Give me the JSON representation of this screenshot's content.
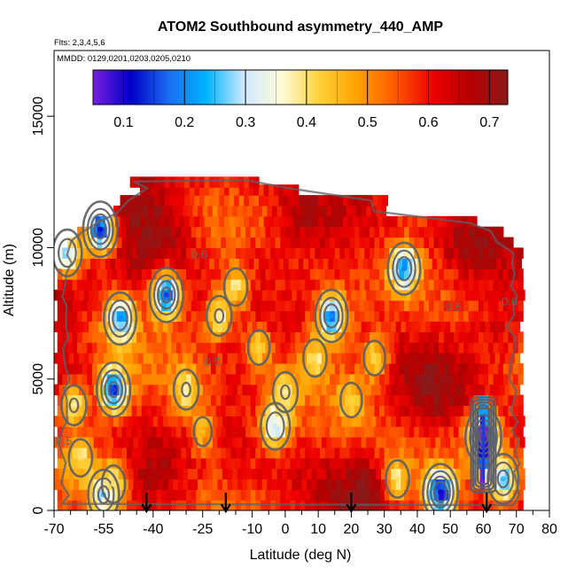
{
  "chart_data": {
    "type": "heatmap",
    "title": "ATOM2 Southbound asymmetry_440_AMP",
    "flights_note": "Flts: 2,3,4,5,6",
    "dates_note": "MMDD: 0129,0201,0203,0205,0210",
    "xlabel": "Latitude (deg N)",
    "ylabel": "Altitude (m)",
    "xlim": [
      -70,
      80
    ],
    "ylim": [
      0,
      17500
    ],
    "xticks": [
      -70,
      -55,
      -40,
      -25,
      -10,
      0,
      10,
      20,
      30,
      40,
      50,
      60,
      70,
      80
    ],
    "xtick_labels": [
      "-70",
      "-55",
      "-40",
      "-25",
      "-10",
      "0",
      "10",
      "20",
      "30",
      "40",
      "50",
      "60",
      "70",
      "80"
    ],
    "xminor": [
      -65,
      -60,
      -50,
      -45,
      -35,
      -30,
      -20,
      -15,
      -5,
      5,
      15,
      25,
      35,
      45,
      55,
      65,
      75
    ],
    "yticks": [
      0,
      5000,
      10000,
      15000
    ],
    "ytick_labels": [
      "0",
      "5000",
      "10000",
      "15000"
    ],
    "colorbar": {
      "range": [
        0.05,
        0.73
      ],
      "ticks": [
        0.1,
        0.2,
        0.3,
        0.4,
        0.5,
        0.6,
        0.7
      ],
      "tick_labels": [
        "0.1",
        "0.2",
        "0.3",
        "0.4",
        "0.5",
        "0.6",
        "0.7"
      ],
      "colors": [
        "#7a1fe0",
        "#0000c8",
        "#1b6cf0",
        "#00b4ff",
        "#cfe9ff",
        "#fffbd8",
        "#ffd23a",
        "#ffa200",
        "#ff5a00",
        "#ee0000",
        "#b50000",
        "#8a1a1a"
      ]
    },
    "contour_labels": [
      {
        "text": "0.6",
        "lat": -26,
        "alt": 9600
      },
      {
        "text": "0.6",
        "lat": 51,
        "alt": 7600
      },
      {
        "text": "0.6",
        "lat": 68,
        "alt": 7800
      },
      {
        "text": "0.5",
        "lat": -22,
        "alt": 5500
      },
      {
        "text": "0.5",
        "lat": -67,
        "alt": 2500
      }
    ],
    "arrows_lat": [
      -42,
      -18,
      20,
      61
    ],
    "field_coverage": [
      {
        "alt": 200,
        "lat_min": -69,
        "lat_max": 72
      },
      {
        "alt": 600,
        "lat_min": -69,
        "lat_max": 72
      },
      {
        "alt": 1000,
        "lat_min": -70,
        "lat_max": 72
      },
      {
        "alt": 1400,
        "lat_min": -70,
        "lat_max": 72
      },
      {
        "alt": 1800,
        "lat_min": -69,
        "lat_max": 72
      },
      {
        "alt": 2200,
        "lat_min": -69,
        "lat_max": 72
      },
      {
        "alt": 2600,
        "lat_min": -70,
        "lat_max": 72
      },
      {
        "alt": 3000,
        "lat_min": -69,
        "lat_max": 71
      },
      {
        "alt": 3400,
        "lat_min": -70,
        "lat_max": 72
      },
      {
        "alt": 3800,
        "lat_min": -69,
        "lat_max": 71
      },
      {
        "alt": 4200,
        "lat_min": -69,
        "lat_max": 72
      },
      {
        "alt": 4600,
        "lat_min": -70,
        "lat_max": 71
      },
      {
        "alt": 5000,
        "lat_min": -69,
        "lat_max": 71
      },
      {
        "alt": 5400,
        "lat_min": -69,
        "lat_max": 72
      },
      {
        "alt": 5800,
        "lat_min": -70,
        "lat_max": 71
      },
      {
        "alt": 6200,
        "lat_min": -69,
        "lat_max": 71
      },
      {
        "alt": 6600,
        "lat_min": -69,
        "lat_max": 72
      },
      {
        "alt": 7000,
        "lat_min": -70,
        "lat_max": 71
      },
      {
        "alt": 7400,
        "lat_min": -69,
        "lat_max": 72
      },
      {
        "alt": 7800,
        "lat_min": -69,
        "lat_max": 71
      },
      {
        "alt": 8200,
        "lat_min": -70,
        "lat_max": 72
      },
      {
        "alt": 8600,
        "lat_min": -69,
        "lat_max": 71
      },
      {
        "alt": 9000,
        "lat_min": -69,
        "lat_max": 72
      },
      {
        "alt": 9400,
        "lat_min": -68,
        "lat_max": 71
      },
      {
        "alt": 9800,
        "lat_min": -69,
        "lat_max": 71
      },
      {
        "alt": 10200,
        "lat_min": -66,
        "lat_max": 68
      },
      {
        "alt": 10600,
        "lat_min": -63,
        "lat_max": 66
      },
      {
        "alt": 11000,
        "lat_min": -59,
        "lat_max": 58
      },
      {
        "alt": 11400,
        "lat_min": -52,
        "lat_max": 30
      },
      {
        "alt": 11800,
        "lat_min": -50,
        "lat_max": 30
      },
      {
        "alt": 12200,
        "lat_min": -44,
        "lat_max": 4
      },
      {
        "alt": 12500,
        "lat_min": -47,
        "lat_max": -9
      }
    ],
    "low_value_regions": [
      {
        "lat": -56,
        "alt": 10700,
        "v": 0.12
      },
      {
        "lat": -66,
        "alt": 9800,
        "v": 0.3
      },
      {
        "lat": -36,
        "alt": 8200,
        "v": 0.15
      },
      {
        "lat": -50,
        "alt": 7300,
        "v": 0.2
      },
      {
        "lat": -20,
        "alt": 7400,
        "v": 0.38
      },
      {
        "lat": -15,
        "alt": 8500,
        "v": 0.4
      },
      {
        "lat": -8,
        "alt": 6200,
        "v": 0.42
      },
      {
        "lat": 0,
        "alt": 4500,
        "v": 0.38
      },
      {
        "lat": -3,
        "alt": 3200,
        "v": 0.3
      },
      {
        "lat": 9,
        "alt": 5800,
        "v": 0.4
      },
      {
        "lat": 14,
        "alt": 7400,
        "v": 0.2
      },
      {
        "lat": 27,
        "alt": 5800,
        "v": 0.42
      },
      {
        "lat": 36,
        "alt": 9200,
        "v": 0.2
      },
      {
        "lat": -52,
        "alt": 4600,
        "v": 0.15
      },
      {
        "lat": -64,
        "alt": 4000,
        "v": 0.38
      },
      {
        "lat": -62,
        "alt": 2000,
        "v": 0.4
      },
      {
        "lat": -55,
        "alt": 600,
        "v": 0.25
      },
      {
        "lat": -52,
        "alt": 1000,
        "v": 0.4
      },
      {
        "lat": 47,
        "alt": 700,
        "v": 0.1
      },
      {
        "lat": 34,
        "alt": 1200,
        "v": 0.4
      },
      {
        "lat": 60,
        "alt": 2800,
        "v": 0.05
      },
      {
        "lat": 66,
        "alt": 1200,
        "v": 0.25
      },
      {
        "lat": -30,
        "alt": 4600,
        "v": 0.38
      },
      {
        "lat": 20,
        "alt": 4200,
        "v": 0.42
      },
      {
        "lat": -25,
        "alt": 3000,
        "v": 0.45
      }
    ],
    "high_value_regions": [
      {
        "lat": -70,
        "alt": 8000,
        "v": 0.7
      },
      {
        "lat": -45,
        "alt": 11800,
        "v": 0.7
      },
      {
        "lat": 5,
        "alt": 11000,
        "v": 0.65
      },
      {
        "lat": 55,
        "alt": 10200,
        "v": 0.68
      },
      {
        "lat": 65,
        "alt": 7000,
        "v": 0.66
      },
      {
        "lat": 45,
        "alt": 4500,
        "v": 0.66
      },
      {
        "lat": -40,
        "alt": 1500,
        "v": 0.66
      },
      {
        "lat": 25,
        "alt": 500,
        "v": 0.7
      },
      {
        "lat": -10,
        "alt": 9500,
        "v": 0.64
      },
      {
        "lat": -35,
        "alt": 10500,
        "v": 0.65
      }
    ]
  }
}
